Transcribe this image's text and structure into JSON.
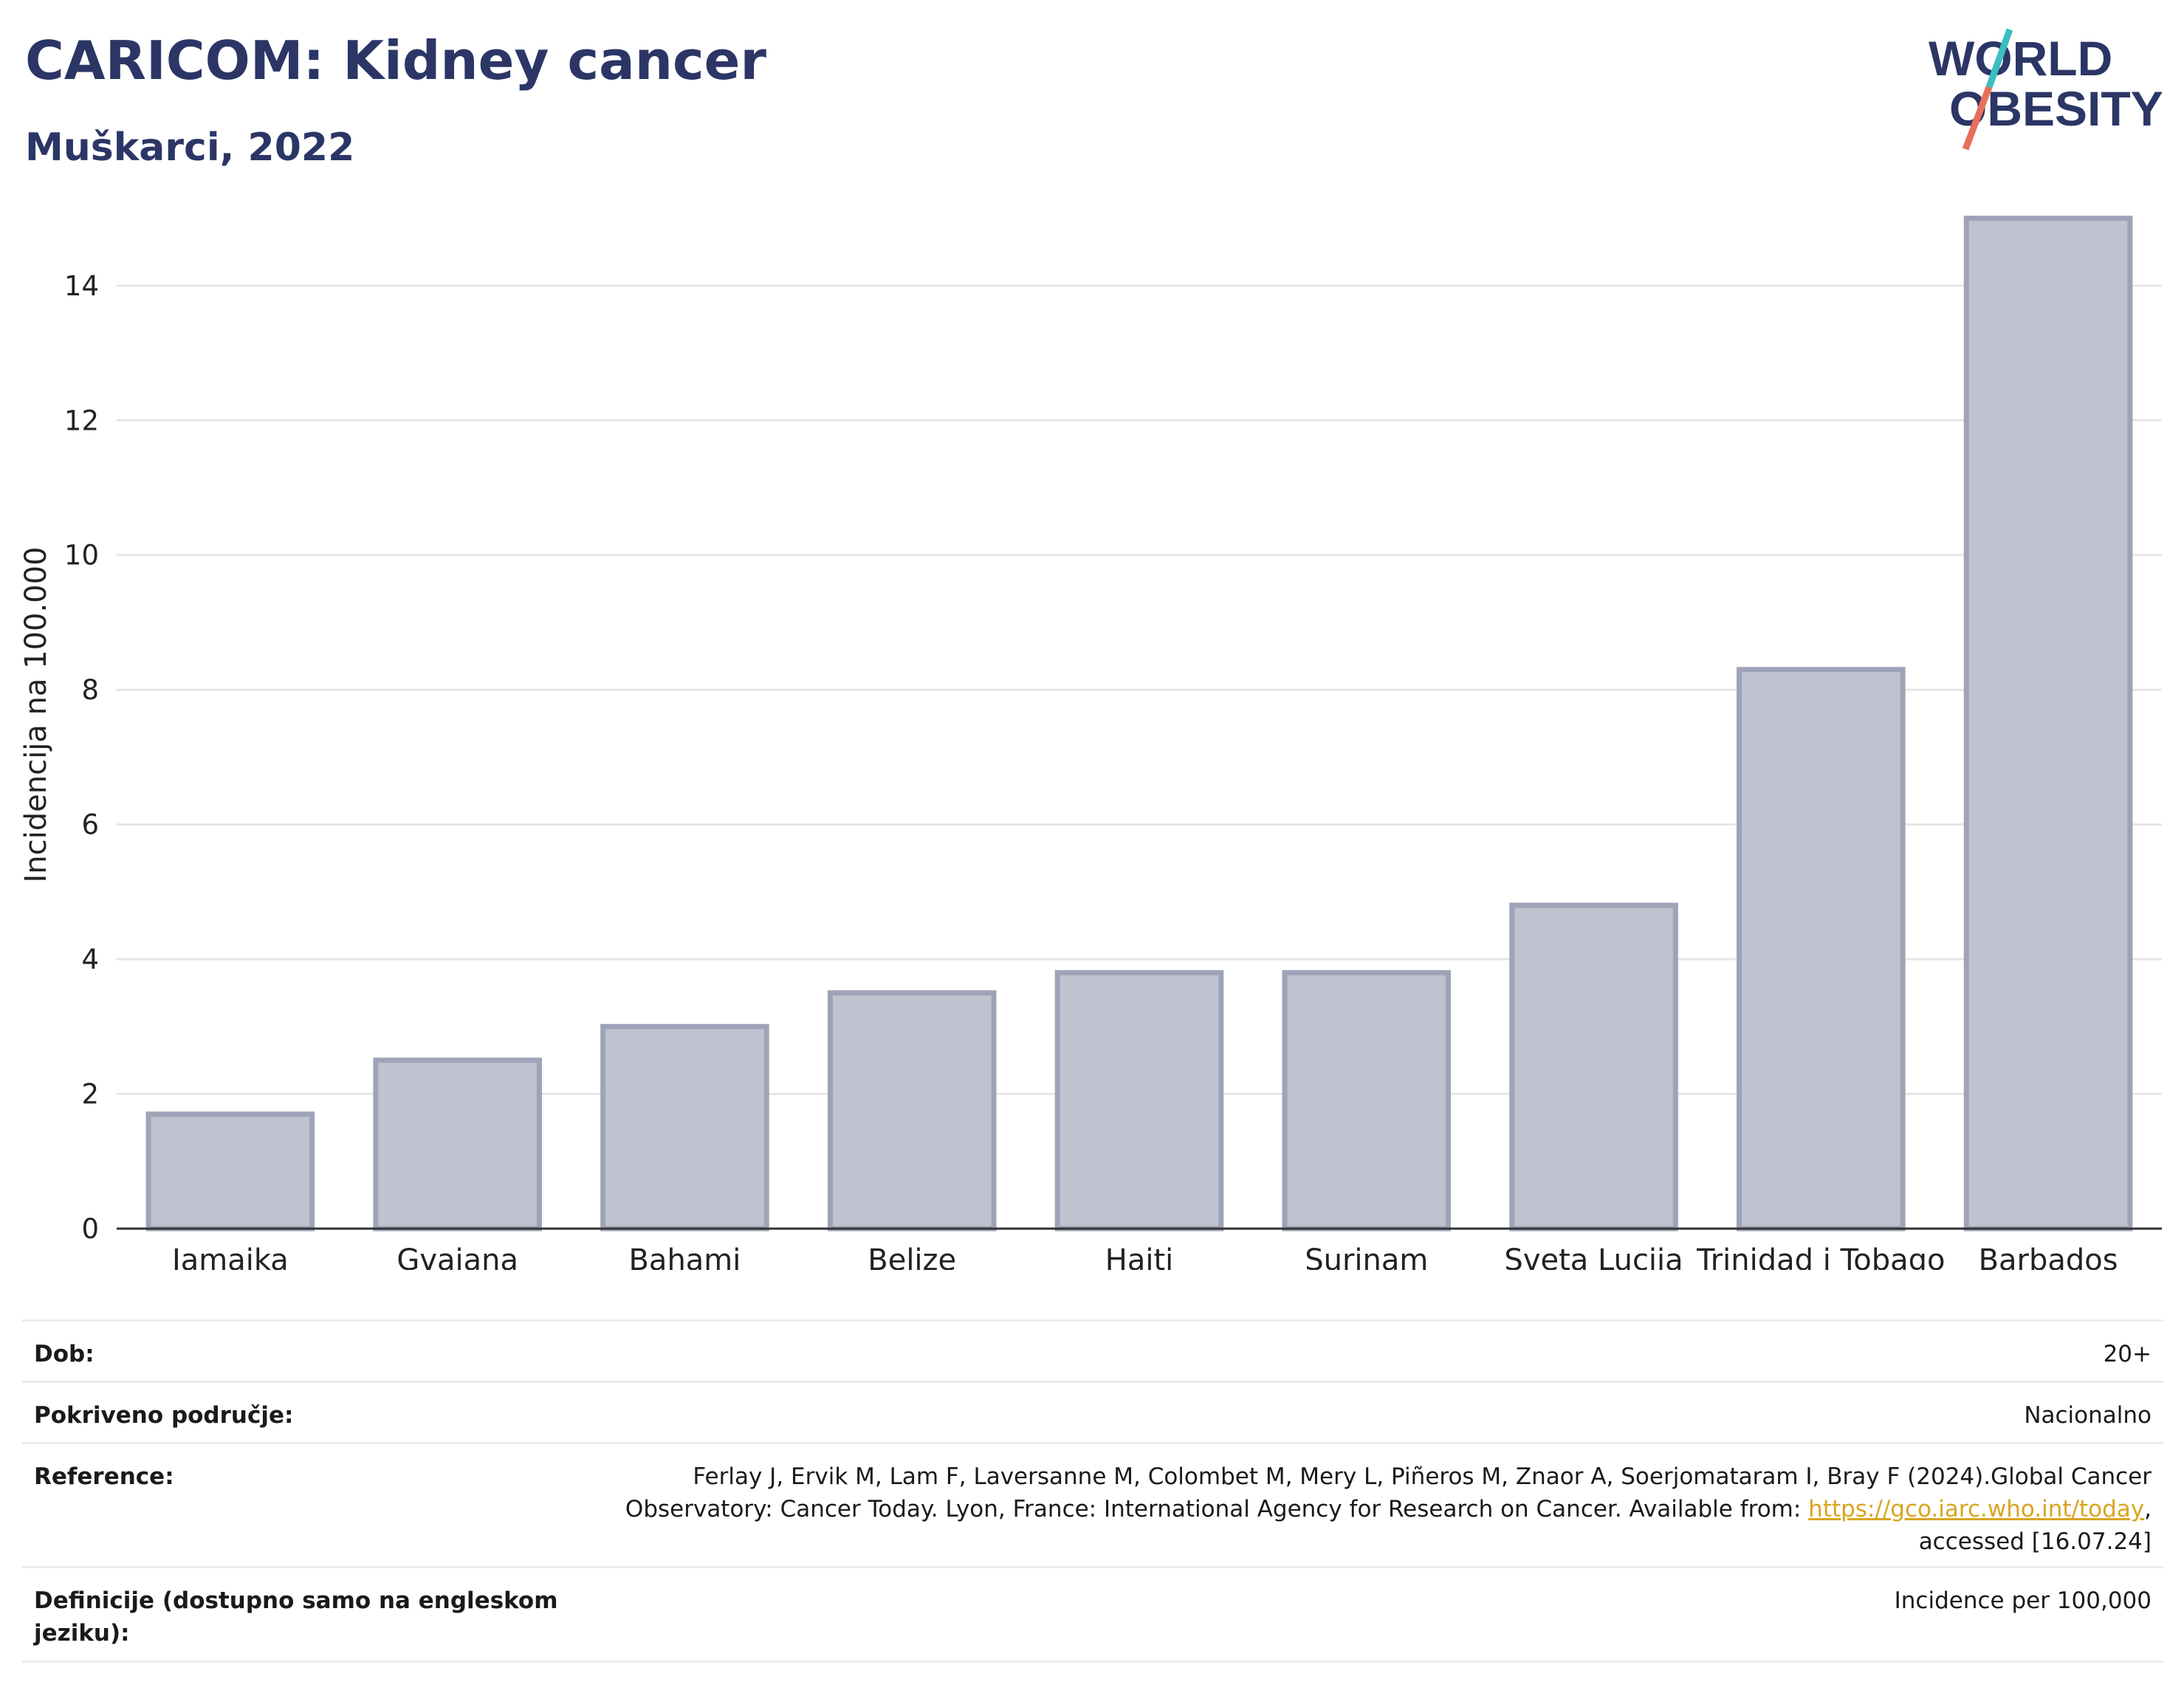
{
  "header": {
    "title": "CARICOM: Kidney cancer",
    "subtitle": "Muškarci, 2022"
  },
  "logo": {
    "line1": "WORLD",
    "line2": "OBESITY",
    "colors": {
      "text": "#2b3666",
      "slash_top": "#3bbfc1",
      "slash_bottom": "#e8705a"
    }
  },
  "chart_data": {
    "type": "bar",
    "categories": [
      "Jamajka",
      "Gvajana",
      "Bahami",
      "Belize",
      "Haiti",
      "Surinam",
      "Sveta Lucija",
      "Trinidad i Tobago",
      "Barbados"
    ],
    "values": [
      1.7,
      2.5,
      3.0,
      3.5,
      3.8,
      3.8,
      4.8,
      8.3,
      15.0
    ],
    "title": "CARICOM: Kidney cancer",
    "subtitle": "Muškarci, 2022",
    "xlabel": "",
    "ylabel": "Incidencija na 100.000",
    "ylim": [
      0,
      15.5
    ],
    "yticks": [
      0,
      2,
      4,
      6,
      8,
      10,
      12,
      14
    ],
    "grid": true,
    "colors": {
      "bar_fill": "#bfc2cf",
      "bar_stroke": "#9ea3b8",
      "axis": "#333333",
      "grid": "#e6e6e6"
    }
  },
  "meta": {
    "rows": [
      {
        "label": "Dob:",
        "value": "20+"
      },
      {
        "label": "Pokriveno područje:",
        "value": "Nacionalno"
      },
      {
        "label": "Reference:",
        "value_lines": [
          "Ferlay J, Ervik M, Lam F, Laversanne M, Colombet M, Mery L, Piñeros M, Znaor A, Soerjomataram I, Bray F (2024).Global Cancer",
          "Observatory: Cancer Today. Lyon, France: International Agency for Research on Cancer. Available from: ",
          "accessed [16.07.24]"
        ],
        "link": "https://gco.iarc.who.int/today",
        "link_suffix": ","
      },
      {
        "label": "Definicije (dostupno samo na engleskom jeziku):",
        "value": "Incidence per 100,000"
      }
    ]
  }
}
